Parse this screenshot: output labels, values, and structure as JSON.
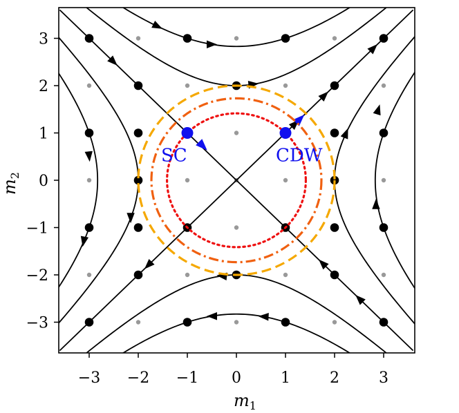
{
  "chart_data": {
    "type": "diagram",
    "xlabel": "m",
    "xlabel_sub": "1",
    "ylabel": "m",
    "ylabel_sub": "2",
    "xlim": [
      -3.6,
      3.6
    ],
    "ylim": [
      -3.6,
      3.6
    ],
    "xticks": [
      -3,
      -2,
      -1,
      0,
      1,
      2,
      3
    ],
    "yticks": [
      -3,
      -2,
      -1,
      0,
      1,
      2,
      3
    ],
    "xtick_labels": [
      "−3",
      "−2",
      "−1",
      "0",
      "1",
      "2",
      "3"
    ],
    "ytick_labels": [
      "−3",
      "−2",
      "−1",
      "0",
      "1",
      "2",
      "3"
    ],
    "grid_points": "gray dots at every integer lattice point",
    "flow_lines": {
      "separatrices": [
        "m2 = m1",
        "m2 = -m1"
      ],
      "hyperbolas_k": [
        -8,
        -4,
        4,
        8
      ],
      "flow_direction": "away from origin along |m1| = |m2| toward diagonal; inward along axes"
    },
    "circles": [
      {
        "radius": 2.0,
        "style": "dashed",
        "color": "#f5a800"
      },
      {
        "radius": 1.732,
        "style": "dashdot",
        "color": "#f06010"
      },
      {
        "radius": 1.414,
        "style": "dotted",
        "color": "#ee1010"
      }
    ],
    "labeled_points": [
      {
        "label": "SC",
        "x": -1,
        "y": 1,
        "color": "#1010ee"
      },
      {
        "label": "CDW",
        "x": 1,
        "y": 1,
        "color": "#1010ee"
      }
    ],
    "black_points_note": "black dots on flow lines at lattice points"
  }
}
